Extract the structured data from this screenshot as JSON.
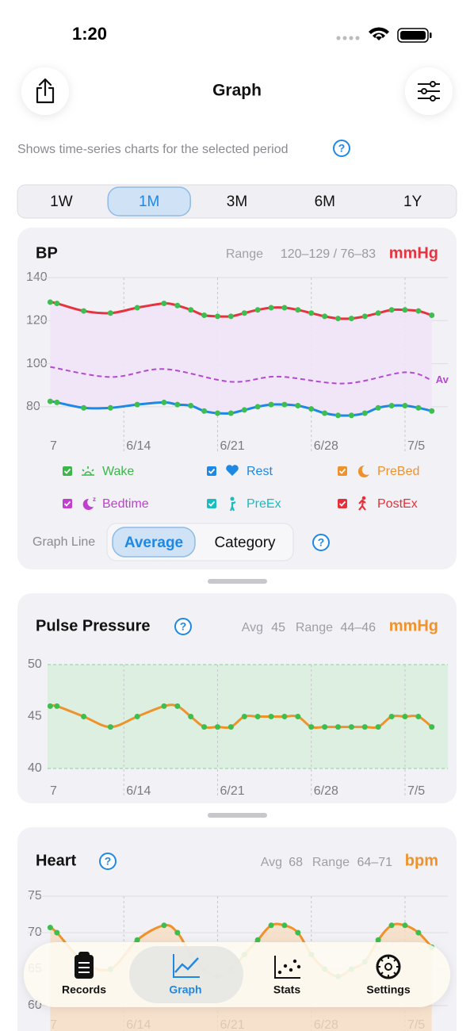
{
  "status": {
    "time": "1:20"
  },
  "header": {
    "title": "Graph",
    "subtitle": "Shows time-series charts for the selected period"
  },
  "help_label": "?",
  "periods": {
    "options": [
      "1W",
      "1M",
      "3M",
      "6M",
      "1Y"
    ],
    "selected": 1
  },
  "legend": [
    {
      "label": "Wake",
      "color": "#3cb64a"
    },
    {
      "label": "Rest",
      "color": "#1e88e5"
    },
    {
      "label": "PreBed",
      "color": "#f0922b"
    },
    {
      "label": "Bedtime",
      "color": "#c03fd1"
    },
    {
      "label": "PreEx",
      "color": "#19bcc0"
    },
    {
      "label": "PostEx",
      "color": "#e5303a"
    }
  ],
  "graph_line": {
    "label": "Graph Line",
    "options": [
      "Average",
      "Category"
    ],
    "selected": 0
  },
  "chart_data": [
    {
      "type": "line",
      "title": "BP",
      "range_label": "Range",
      "range_value": "120–129 / 76–83",
      "unit": "mmHg",
      "unit_color": "#e5333f",
      "x": [
        1.5,
        2,
        4,
        6,
        8,
        10,
        11,
        12,
        13,
        14,
        15,
        16,
        17,
        18,
        19,
        20,
        21,
        22,
        23,
        24,
        25,
        26,
        27,
        28,
        29,
        30
      ],
      "xlim": [
        1.3,
        31.2
      ],
      "xticks": [
        {
          "value": 1.3,
          "label": "7"
        },
        {
          "value": 7,
          "label": "6/14"
        },
        {
          "value": 14,
          "label": "6/21"
        },
        {
          "value": 21,
          "label": "6/28"
        },
        {
          "value": 28,
          "label": "7/5"
        }
      ],
      "ylim": [
        70,
        140
      ],
      "yticks": [
        80,
        100,
        120,
        140
      ],
      "grid": true,
      "marker_color": "#3dbe4f",
      "range_fill": "#f1e4f7",
      "series": [
        {
          "color": "#e5333f",
          "values": [
            128.6,
            128,
            124.5,
            123.5,
            126,
            128,
            127,
            125,
            122.5,
            122,
            122,
            123.5,
            125,
            126,
            126,
            125,
            123.5,
            122,
            121,
            121,
            122,
            123.5,
            125,
            125,
            124.5,
            122.5
          ]
        },
        {
          "color": "#1e88e5",
          "values": [
            82.5,
            82,
            79.5,
            79.5,
            81,
            82,
            81,
            80.5,
            78,
            77,
            77,
            78.5,
            80,
            81,
            81,
            80.5,
            79,
            77,
            76,
            76,
            77,
            79.5,
            80.5,
            80.5,
            79.5,
            78
          ]
        },
        {
          "name": "Av",
          "color": "#b548d6",
          "dash": true,
          "markers": false,
          "x": [
            1.5,
            6,
            10,
            15,
            18.5,
            23.5,
            28,
            30
          ],
          "values": [
            98.5,
            93.8,
            97.5,
            91.6,
            94,
            90.8,
            96,
            92.3
          ]
        }
      ]
    },
    {
      "type": "line",
      "title": "Pulse Pressure",
      "avg_label": "Avg",
      "avg_value": "45",
      "range_label": "Range",
      "range_value": "44–46",
      "unit": "mmHg",
      "unit_color": "#f0922b",
      "x": [
        1.5,
        2,
        4,
        6,
        8,
        10,
        11,
        12,
        13,
        14,
        15,
        16,
        17,
        18,
        19,
        20,
        21,
        22,
        23,
        24,
        25,
        26,
        27,
        28,
        29,
        30
      ],
      "xlim": [
        1.3,
        31.2
      ],
      "xticks": [
        {
          "value": 1.3,
          "label": "7"
        },
        {
          "value": 7,
          "label": "6/14"
        },
        {
          "value": 14,
          "label": "6/21"
        },
        {
          "value": 21,
          "label": "6/28"
        },
        {
          "value": 28,
          "label": "7/5"
        }
      ],
      "ylim": [
        40,
        50
      ],
      "yticks": [
        40,
        45,
        50
      ],
      "grid": false,
      "band_color": "#dcefe0",
      "marker_color": "#3dbe4f",
      "series": [
        {
          "color": "#f0922b",
          "values": [
            46,
            46,
            45,
            44,
            45,
            46,
            46,
            45,
            44,
            44,
            44,
            45,
            45,
            45,
            45,
            45,
            44,
            44,
            44,
            44,
            44,
            44,
            45,
            45,
            45,
            44
          ]
        }
      ]
    },
    {
      "type": "area",
      "title": "Heart",
      "avg_label": "Avg",
      "avg_value": "68",
      "range_label": "Range",
      "range_value": "64–71",
      "unit": "bpm",
      "unit_color": "#f0922b",
      "x": [
        1.5,
        2,
        4,
        6,
        8,
        10,
        11,
        12,
        13,
        14,
        15,
        16,
        17,
        18,
        19,
        20,
        21,
        22,
        23,
        24,
        25,
        26,
        27,
        28,
        29,
        30
      ],
      "xlim": [
        1.3,
        31.2
      ],
      "xticks": [
        {
          "value": 1.3,
          "label": "7"
        },
        {
          "value": 7,
          "label": "6/14"
        },
        {
          "value": 14,
          "label": "6/21"
        },
        {
          "value": 21,
          "label": "6/28"
        },
        {
          "value": 28,
          "label": "7/5"
        }
      ],
      "ylim": [
        60,
        75
      ],
      "yticks": [
        60,
        65,
        70,
        75
      ],
      "grid": true,
      "marker_color": "#3dbe4f",
      "area_color": "#f6dcc2",
      "series": [
        {
          "color": "#f0922b",
          "values": [
            70.7,
            70,
            66,
            65,
            69,
            71,
            70,
            67,
            65,
            64,
            65,
            67,
            69,
            71,
            71,
            70,
            67,
            65,
            64,
            65,
            66,
            69,
            71,
            71,
            70,
            68
          ]
        }
      ]
    }
  ],
  "tabs": {
    "items": [
      "Records",
      "Graph",
      "Stats",
      "Settings"
    ],
    "selected": 1
  }
}
